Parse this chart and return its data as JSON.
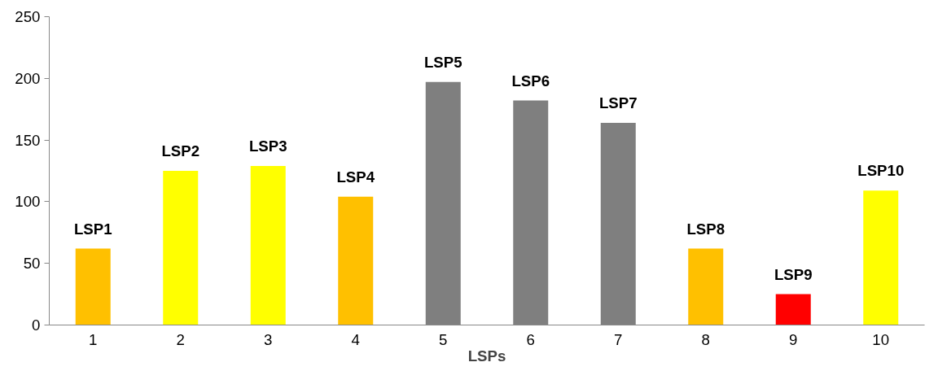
{
  "chart_data": {
    "type": "bar",
    "xlabel": "LSPs",
    "categories": [
      "1",
      "2",
      "3",
      "4",
      "5",
      "6",
      "7",
      "8",
      "9",
      "10"
    ],
    "values": [
      62,
      125,
      129,
      104,
      197,
      182,
      164,
      62,
      25,
      109
    ],
    "colors": [
      "#ffc000",
      "#ffff00",
      "#ffff00",
      "#ffc000",
      "#7f7f7f",
      "#7f7f7f",
      "#7f7f7f",
      "#ffc000",
      "#ff0000",
      "#ffff00"
    ],
    "ylim": [
      0,
      250
    ],
    "yticks": [
      0,
      50,
      100,
      150,
      200,
      250
    ],
    "grid": false,
    "annotations": [
      {
        "text": "LSP1",
        "x": "1",
        "y": 62
      },
      {
        "text": "LSP2",
        "x": "2",
        "y": 125
      },
      {
        "text": "LSP3",
        "x": "3",
        "y": 129
      },
      {
        "text": "LSP4",
        "x": "4",
        "y": 104
      },
      {
        "text": "LSP5",
        "x": "5",
        "y": 197
      },
      {
        "text": "LSP6",
        "x": "6",
        "y": 182
      },
      {
        "text": "LSP7",
        "x": "7",
        "y": 164
      },
      {
        "text": "LSP8",
        "x": "8",
        "y": 62
      },
      {
        "text": "LSP9",
        "x": "9",
        "y": 25
      },
      {
        "text": "LSP10",
        "x": "10",
        "y": 109
      }
    ]
  }
}
